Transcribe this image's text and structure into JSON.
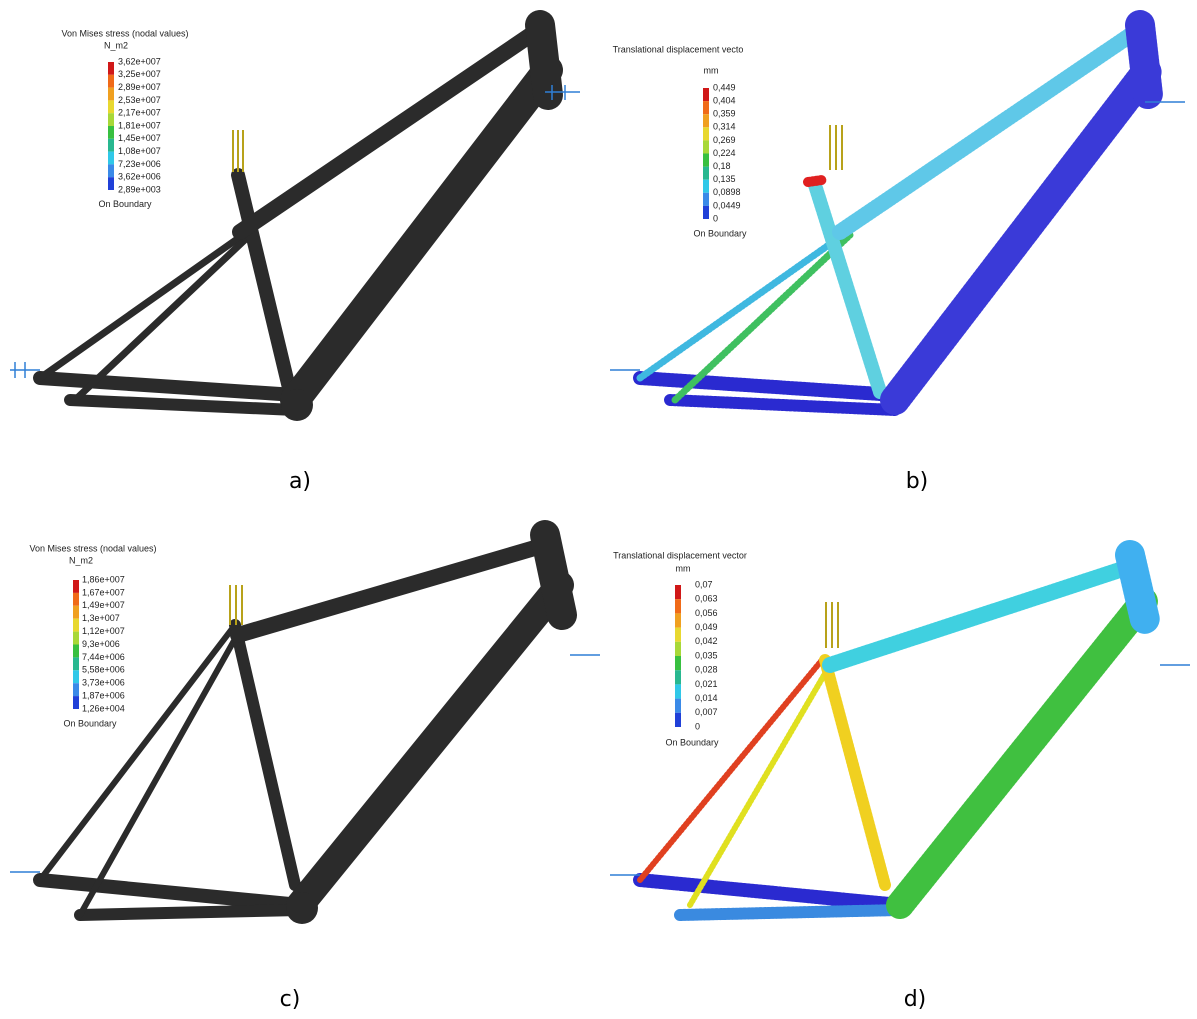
{
  "panels": [
    {
      "legend": {
        "title": "Von Mises stress (nodal values)",
        "unit": "N_m2",
        "labels": [
          "3,62e+007",
          "3,25e+007",
          "2,89e+007",
          "2,53e+007",
          "2,17e+007",
          "1,81e+007",
          "1,45e+007",
          "1,08e+007",
          "7,23e+006",
          "3,62e+006",
          "2,89e+003"
        ],
        "footer": "On Boundary"
      },
      "caption": "a)"
    },
    {
      "legend": {
        "title": "Translational displacement vecto",
        "unit": "mm",
        "labels": [
          "0,449",
          "0,404",
          "0,359",
          "0,314",
          "0,269",
          "0,224",
          "0,18",
          "0,135",
          "0,0898",
          "0,0449",
          "0"
        ],
        "footer": "On Boundary"
      },
      "caption": "b)"
    },
    {
      "legend": {
        "title": "Von Mises stress (nodal values)",
        "unit": "N_m2",
        "labels": [
          "1,86e+007",
          "1,67e+007",
          "1,49e+007",
          "1,3e+007",
          "1,12e+007",
          "9,3e+006",
          "7,44e+006",
          "5,58e+006",
          "3,73e+006",
          "1,87e+006",
          "1,26e+004"
        ],
        "footer": "On Boundary"
      },
      "caption": "c)"
    },
    {
      "legend": {
        "title": "Translational displacement vector",
        "unit": "mm",
        "labels": [
          "0,07",
          "0,063",
          "0,056",
          "0,049",
          "0,042",
          "0,035",
          "0,028",
          "0,021",
          "0,014",
          "0,007",
          "0"
        ],
        "footer": "On Boundary"
      },
      "caption": "d)"
    }
  ]
}
